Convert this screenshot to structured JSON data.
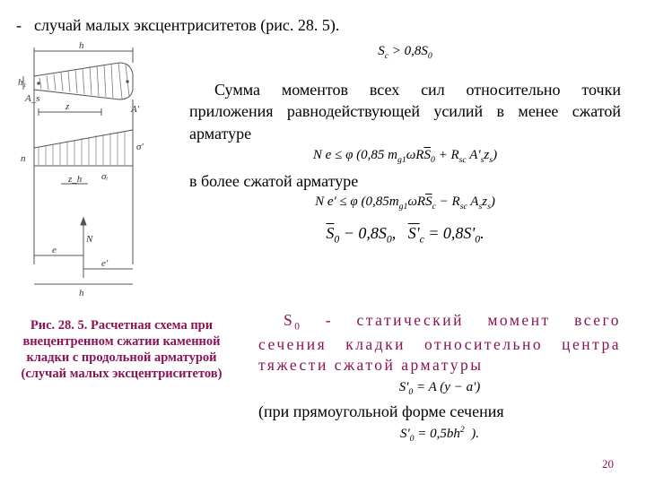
{
  "text": {
    "dash": "-",
    "title": "случай малых эксцентриситетов (рис. 28. 5).",
    "eq_top": "S<span class='sub'>c</span> &gt; 0,8S<span class='sub'>0</span>",
    "para1": "Сумма моментов всех сил относительно точки приложения равнодействующей усилий в менее сжатой арматуре",
    "eq1": "N e &le; &phi; (0,85 m<span class='sub'>g1</span>&omega;R<span class='ov'>S</span><span class='sub'>0</span> + R<span class='sub'>sc</span> A'<span class='sub'>s</span>z<span class='sub'>s</span>)",
    "para2": "в более сжатой арматуре",
    "eq2": "N e' &le; &phi; (0,85m<span class='sub'>g1</span>&omega;R<span class='ov'>S</span><span class='sub'>c</span> &minus; R<span class='sub'>sc</span> A<span class='sub'>s</span>z<span class='sub'>s</span>)",
    "eq3": "<span class='ov'>S</span><span class='sub'>0</span> &minus; 0,8S<span class='sub'>0</span>, &nbsp; <span class='ov'>S'</span><span class='sub'>c</span> = 0,8S'<span class='sub'>0</span>.",
    "caption": "Рис. 28. 5. Расчетная схема при внецентренном сжатии каменной кладки с продольной арматурой  (случай малых эксцентриситетов)",
    "def": "<span class='ss'>S<span class='sub'>0</span> - статический момент всего сечения кладки относительно центра тяжести сжатой арматуры</span>",
    "eq4": "S'<span class='sub'>0</span> = A (y &minus; a')",
    "tail": "(при прямоугольной форме сечения",
    "eq5": "S'<span class='sub'>0</span> = 0,5bh<span class='sup'>2</span>&nbsp;&nbsp;).",
    "pagenum": "20"
  },
  "diagram": {
    "labels": {
      "h": "h",
      "h1": "h₁",
      "z": "z",
      "n": "n",
      "zh": "z_h",
      "si": "σᵢ",
      "sigma": "σ'",
      "e": "e",
      "ep": "e'",
      "N": "N",
      "As": "A_s",
      "Asp": "A'"
    },
    "colors": {
      "line": "#555",
      "hatch": "#777"
    }
  },
  "style": {
    "accent": "#8a1357",
    "font": "Times New Roman",
    "base_fontsize": 18
  }
}
